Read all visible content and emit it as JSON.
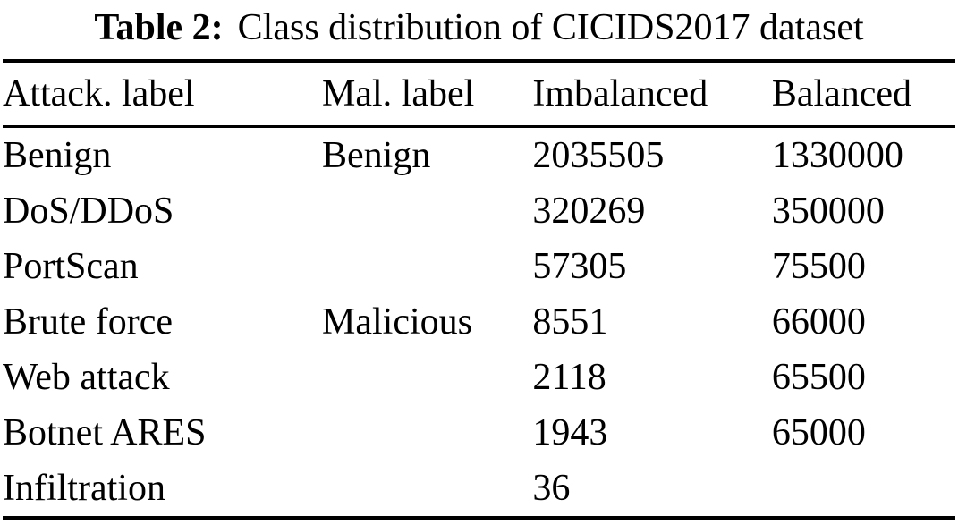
{
  "page": {
    "background": "#ffffff",
    "text_color": "#000000"
  },
  "caption": {
    "label": "Table 2:",
    "text": "Class distribution of CICIDS2017 dataset"
  },
  "table": {
    "headers": [
      "Attack. label",
      "Mal. label",
      "Imbalanced",
      "Balanced"
    ],
    "rows": [
      [
        "Benign",
        "Benign",
        "2035505",
        "1330000"
      ],
      [
        "DoS/DDoS",
        "",
        "320269",
        "350000"
      ],
      [
        "PortScan",
        "",
        "57305",
        "75500"
      ],
      [
        "Brute force",
        "Malicious",
        "8551",
        "66000"
      ],
      [
        "Web attack",
        "",
        "2118",
        "65500"
      ],
      [
        "Botnet ARES",
        "",
        "1943",
        "65000"
      ],
      [
        "Infiltration",
        "",
        "36",
        ""
      ]
    ]
  },
  "chart_data": {
    "type": "table",
    "title": "Table 2: Class distribution of CICIDS2017 dataset",
    "columns": [
      "Attack. label",
      "Mal. label",
      "Imbalanced",
      "Balanced"
    ],
    "rows": [
      {
        "attack_label": "Benign",
        "mal_label": "Benign",
        "imbalanced": 2035505,
        "balanced": 1330000
      },
      {
        "attack_label": "DoS/DDoS",
        "mal_label": "Malicious",
        "imbalanced": 320269,
        "balanced": 350000
      },
      {
        "attack_label": "PortScan",
        "mal_label": "Malicious",
        "imbalanced": 57305,
        "balanced": 75500
      },
      {
        "attack_label": "Brute force",
        "mal_label": "Malicious",
        "imbalanced": 8551,
        "balanced": 66000
      },
      {
        "attack_label": "Web attack",
        "mal_label": "Malicious",
        "imbalanced": 2118,
        "balanced": 65500
      },
      {
        "attack_label": "Botnet ARES",
        "mal_label": "Malicious",
        "imbalanced": 1943,
        "balanced": 65000
      },
      {
        "attack_label": "Infiltration",
        "mal_label": "Malicious",
        "imbalanced": 36,
        "balanced": null
      }
    ]
  }
}
